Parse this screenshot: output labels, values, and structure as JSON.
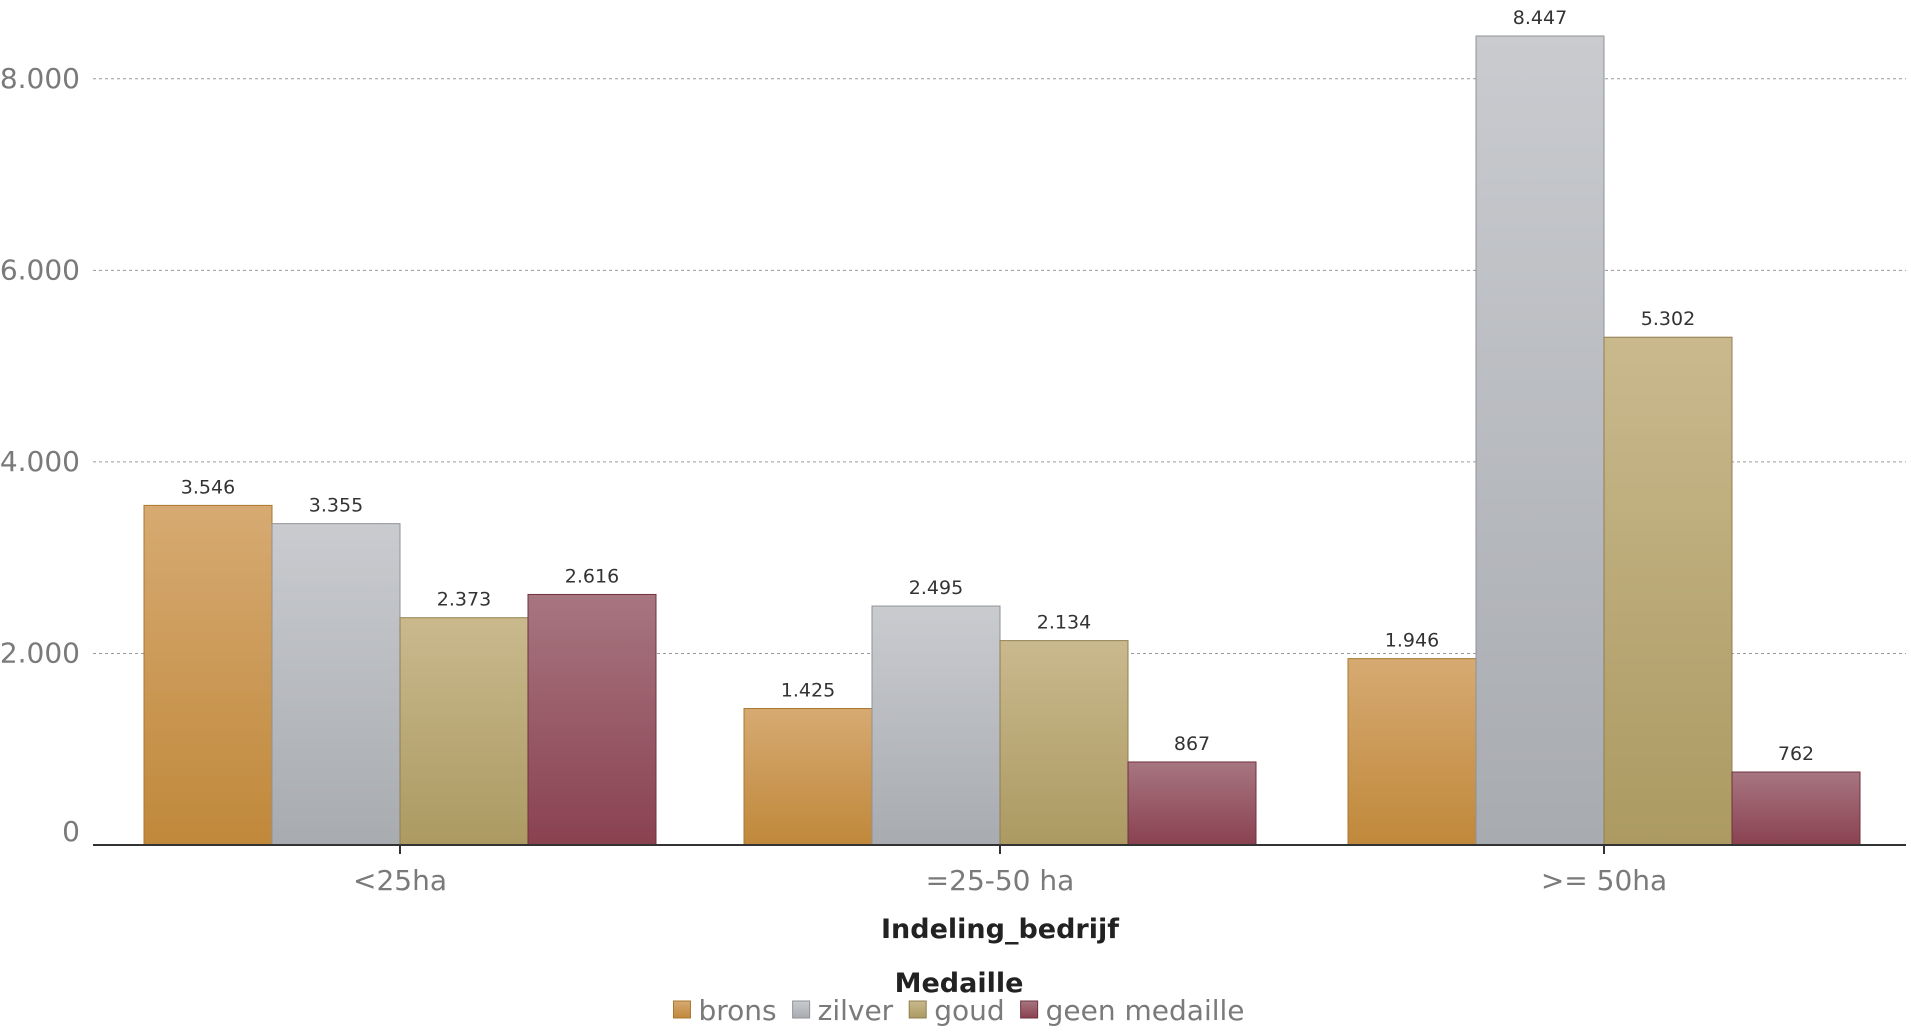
{
  "chart_data": {
    "type": "bar",
    "xlabel": "Indeling_bedrijf",
    "ylabel": "",
    "categories": [
      "<25ha",
      "=25-50 ha",
      ">= 50ha"
    ],
    "ylim": [
      0,
      8447
    ],
    "yticks": [
      0,
      2000,
      4000,
      6000,
      8000
    ],
    "ytick_labels": [
      "0",
      "2.000",
      "4.000",
      "6.000",
      "8.000"
    ],
    "grid": true,
    "legend_title": "Medaille",
    "legend_position": "bottom-center",
    "series": [
      {
        "name": "brons",
        "values": [
          3546,
          1425,
          1946
        ],
        "labels": [
          "3.546",
          "1.425",
          "1.946"
        ],
        "color_top": "#d6aa72",
        "color_bottom": "#c0883a",
        "stroke": "#a8782f"
      },
      {
        "name": "zilver",
        "values": [
          3355,
          2495,
          8447
        ],
        "labels": [
          "3.355",
          "2.495",
          "8.447"
        ],
        "color_top": "#c9cbcf",
        "color_bottom": "#a8abb0",
        "stroke": "#8f9296"
      },
      {
        "name": "goud",
        "values": [
          2373,
          2134,
          5302
        ],
        "labels": [
          "2.373",
          "2.134",
          "5.302"
        ],
        "color_top": "#c9b98d",
        "color_bottom": "#ac9a62",
        "stroke": "#8f7f4f"
      },
      {
        "name": "geen medaille",
        "values": [
          2616,
          867,
          762
        ],
        "labels": [
          "2.616",
          "867",
          "762"
        ],
        "color_top": "#a77680",
        "color_bottom": "#8a4150",
        "stroke": "#6e3240"
      }
    ]
  }
}
